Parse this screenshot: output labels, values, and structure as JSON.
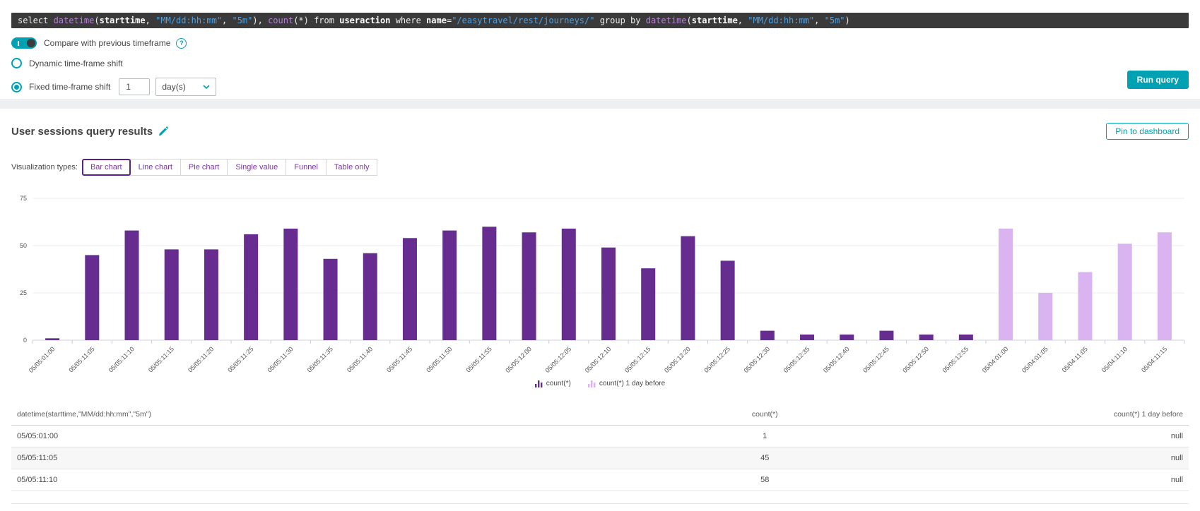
{
  "query_bar": {
    "tokens": [
      {
        "t": "select ",
        "c": "plain"
      },
      {
        "t": "datetime",
        "c": "func"
      },
      {
        "t": "(",
        "c": "plain"
      },
      {
        "t": "starttime",
        "c": "ident"
      },
      {
        "t": ", ",
        "c": "plain"
      },
      {
        "t": "\"MM/dd:hh:mm\"",
        "c": "str"
      },
      {
        "t": ", ",
        "c": "plain"
      },
      {
        "t": "\"5m\"",
        "c": "str"
      },
      {
        "t": "), ",
        "c": "plain"
      },
      {
        "t": "count",
        "c": "func"
      },
      {
        "t": "(*) from ",
        "c": "plain"
      },
      {
        "t": "useraction",
        "c": "ident"
      },
      {
        "t": " where ",
        "c": "plain"
      },
      {
        "t": "name",
        "c": "ident"
      },
      {
        "t": "=",
        "c": "plain"
      },
      {
        "t": "\"/easytravel/rest/journeys/\"",
        "c": "str"
      },
      {
        "t": " group by ",
        "c": "plain"
      },
      {
        "t": "datetime",
        "c": "func"
      },
      {
        "t": "(",
        "c": "plain"
      },
      {
        "t": "starttime",
        "c": "ident"
      },
      {
        "t": ", ",
        "c": "plain"
      },
      {
        "t": "\"MM/dd:hh:mm\"",
        "c": "str"
      },
      {
        "t": ", ",
        "c": "plain"
      },
      {
        "t": "\"5m\"",
        "c": "str"
      },
      {
        "t": ")",
        "c": "plain"
      }
    ]
  },
  "controls": {
    "compare_label": "Compare with previous timeframe",
    "dynamic_label": "Dynamic time-frame shift",
    "fixed_label": "Fixed time-frame shift",
    "shift_value": "1",
    "shift_unit": "day(s)",
    "run_label": "Run query"
  },
  "results": {
    "title": "User sessions query results",
    "pin_label": "Pin to dashboard",
    "viz_label": "Visualization types:",
    "viz_types": [
      "Bar chart",
      "Line chart",
      "Pie chart",
      "Single value",
      "Funnel",
      "Table only"
    ],
    "viz_selected": "Bar chart"
  },
  "chart_data": {
    "type": "bar",
    "title": "",
    "xlabel": "",
    "ylabel": "",
    "ylim": [
      0,
      75
    ],
    "yticks": [
      0,
      25,
      50,
      75
    ],
    "grid": true,
    "legend_position": "bottom-center",
    "series_colors": {
      "current": "#662c90",
      "previous": "#d9b4f0"
    },
    "legend": [
      {
        "label": "count(*)",
        "series": "current"
      },
      {
        "label": "count(*) 1 day before",
        "series": "previous"
      }
    ],
    "bars": [
      {
        "label": "05/05:01:00",
        "value": 1,
        "series": "current"
      },
      {
        "label": "05/05:11:05",
        "value": 45,
        "series": "current"
      },
      {
        "label": "05/05:11:10",
        "value": 58,
        "series": "current"
      },
      {
        "label": "05/05:11:15",
        "value": 48,
        "series": "current"
      },
      {
        "label": "05/05:11:20",
        "value": 48,
        "series": "current"
      },
      {
        "label": "05/05:11:25",
        "value": 56,
        "series": "current"
      },
      {
        "label": "05/05:11:30",
        "value": 59,
        "series": "current"
      },
      {
        "label": "05/05:11:35",
        "value": 43,
        "series": "current"
      },
      {
        "label": "05/05:11:40",
        "value": 46,
        "series": "current"
      },
      {
        "label": "05/05:11:45",
        "value": 54,
        "series": "current"
      },
      {
        "label": "05/05:11:50",
        "value": 58,
        "series": "current"
      },
      {
        "label": "05/05:11:55",
        "value": 60,
        "series": "current"
      },
      {
        "label": "05/05:12:00",
        "value": 57,
        "series": "current"
      },
      {
        "label": "05/05:12:05",
        "value": 59,
        "series": "current"
      },
      {
        "label": "05/05:12:10",
        "value": 49,
        "series": "current"
      },
      {
        "label": "05/05:12:15",
        "value": 38,
        "series": "current"
      },
      {
        "label": "05/05:12:20",
        "value": 55,
        "series": "current"
      },
      {
        "label": "05/05:12:25",
        "value": 42,
        "series": "current"
      },
      {
        "label": "05/05:12:30",
        "value": 5,
        "series": "current"
      },
      {
        "label": "05/05:12:35",
        "value": 3,
        "series": "current"
      },
      {
        "label": "05/05:12:40",
        "value": 3,
        "series": "current"
      },
      {
        "label": "05/05:12:45",
        "value": 5,
        "series": "current"
      },
      {
        "label": "05/05:12:50",
        "value": 3,
        "series": "current"
      },
      {
        "label": "05/05:12:55",
        "value": 3,
        "series": "current"
      },
      {
        "label": "05/04:01:00",
        "value": 59,
        "series": "previous"
      },
      {
        "label": "05/04:01:05",
        "value": 25,
        "series": "previous"
      },
      {
        "label": "05/04:11:05",
        "value": 36,
        "series": "previous"
      },
      {
        "label": "05/04:11:10",
        "value": 51,
        "series": "previous"
      },
      {
        "label": "05/04:11:15",
        "value": 57,
        "series": "previous"
      }
    ]
  },
  "table": {
    "columns": [
      "datetime(starttime,\"MM/dd:hh:mm\",\"5m\")",
      "count(*)",
      "count(*) 1 day before"
    ],
    "rows": [
      [
        "05/05:01:00",
        "1",
        "null"
      ],
      [
        "05/05:11:05",
        "45",
        "null"
      ],
      [
        "05/05:11:10",
        "58",
        "null"
      ]
    ]
  }
}
